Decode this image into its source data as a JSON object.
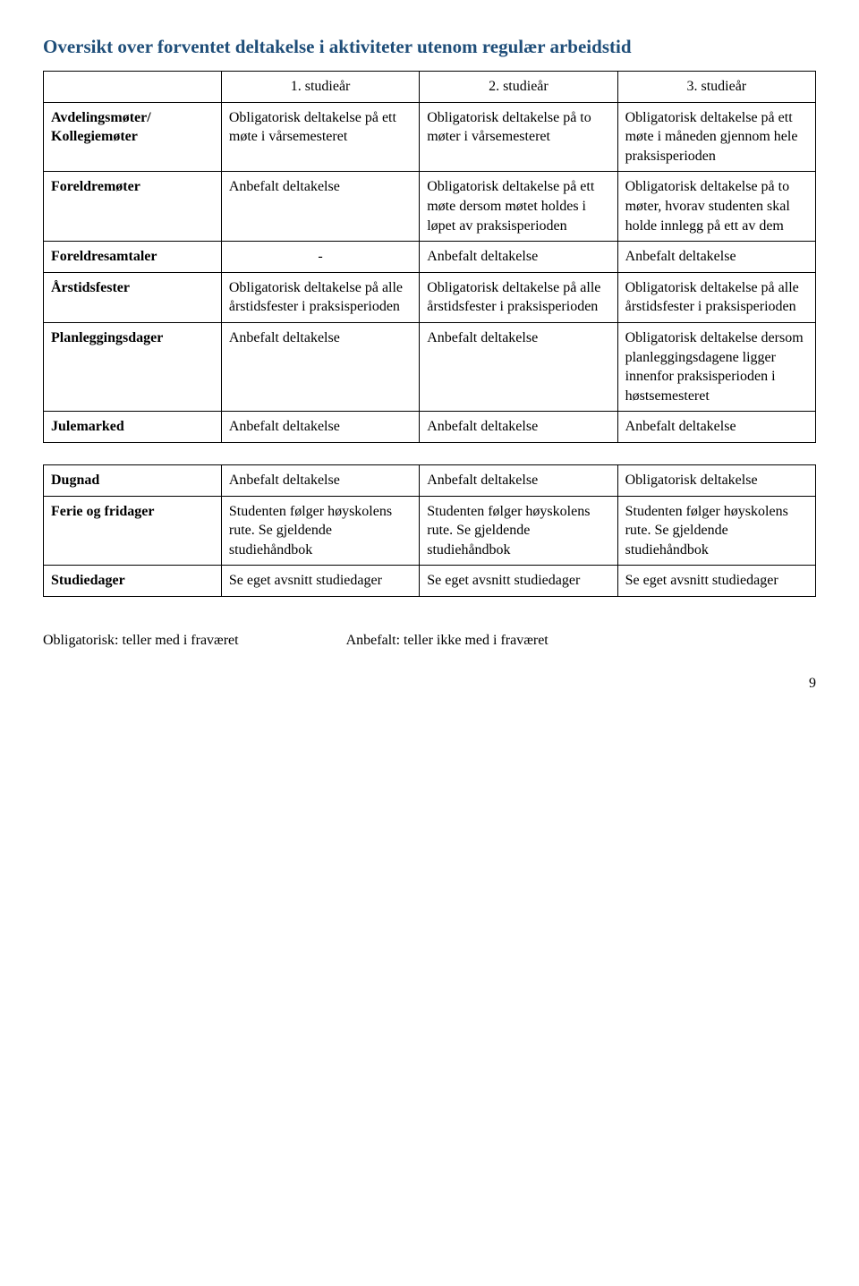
{
  "title": "Oversikt over forventet deltakelse i aktiviteter utenom regulær arbeidstid",
  "title_color": "#1f4e79",
  "text_color": "#000000",
  "background_color": "#ffffff",
  "border_color": "#000000",
  "font_family": "Times New Roman",
  "base_fontsize": 16,
  "title_fontsize": 21,
  "headers": {
    "c0": "",
    "c1": "1. studieår",
    "c2": "2. studieår",
    "c3": "3. studieår"
  },
  "table1": {
    "rows": [
      {
        "label": "Avdelingsmøter/ Kollegiemøter",
        "c1": "Obligatorisk deltakelse på ett møte i vårsemesteret",
        "c2": "Obligatorisk deltakelse på to møter i vårsemesteret",
        "c3": "Obligatorisk deltakelse på ett møte i måneden gjennom hele praksisperioden"
      },
      {
        "label": "Foreldremøter",
        "c1": "Anbefalt deltakelse",
        "c2": "Obligatorisk deltakelse på ett møte dersom møtet holdes i løpet av praksisperioden",
        "c3": "Obligatorisk deltakelse på to møter, hvorav studenten skal holde innlegg på ett av dem"
      },
      {
        "label": "Foreldresamtaler",
        "c1": "-",
        "c1_align": "center",
        "c2": "Anbefalt deltakelse",
        "c3": "Anbefalt deltakelse"
      },
      {
        "label": "Årstidsfester",
        "c1": "Obligatorisk deltakelse på alle årstidsfester i praksisperioden",
        "c2": "Obligatorisk deltakelse på alle årstidsfester i praksisperioden",
        "c3": "Obligatorisk deltakelse på alle årstidsfester i praksisperioden"
      },
      {
        "label": "Planleggingsdager",
        "c1": "Anbefalt deltakelse",
        "c2": "Anbefalt deltakelse",
        "c3": "Obligatorisk deltakelse dersom planleggingsdagene ligger innenfor praksisperioden i høstsemesteret"
      },
      {
        "label": "Julemarked",
        "c1": "Anbefalt deltakelse",
        "c2": "Anbefalt deltakelse",
        "c3": "Anbefalt deltakelse"
      }
    ]
  },
  "table2": {
    "rows": [
      {
        "label": "Dugnad",
        "c1": "Anbefalt deltakelse",
        "c2": "Anbefalt deltakelse",
        "c3": "Obligatorisk deltakelse"
      },
      {
        "label": "Ferie og fridager",
        "c1": "Studenten følger høyskolens rute. Se gjeldende studiehåndbok",
        "c2": "Studenten følger høyskolens rute. Se gjeldende studiehåndbok",
        "c3": "Studenten følger høyskolens rute. Se gjeldende studiehåndbok"
      },
      {
        "label": "Studiedager",
        "c1": "Se eget avsnitt studiedager",
        "c2": "Se eget avsnitt studiedager",
        "c3": "Se eget avsnitt studiedager"
      }
    ]
  },
  "legend": {
    "left": "Obligatorisk: teller med i fraværet",
    "right": "Anbefalt: teller ikke med i fraværet"
  },
  "page_number": "9"
}
